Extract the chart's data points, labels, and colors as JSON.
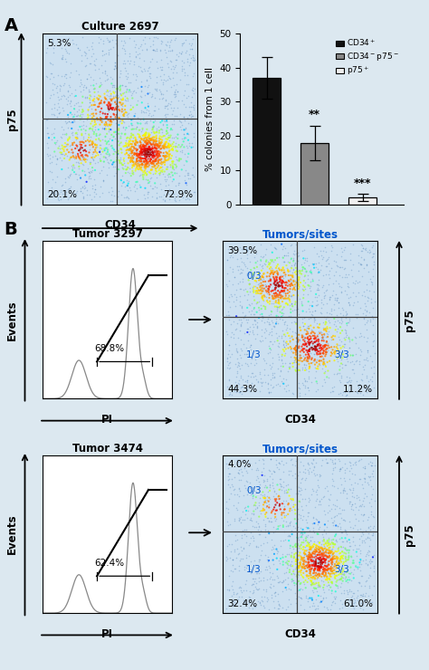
{
  "panel_A_label": "A",
  "panel_B_label": "B",
  "flow_title_A": "Culture 2697",
  "flow_xlabel_A": "CD34",
  "flow_ylabel_A": "p75",
  "quad_A": {
    "UL": "5.3%",
    "LL": "20.1%",
    "LR": "72.9%"
  },
  "bar_ylabel": "% colonies from 1 cell",
  "bar_ylim": [
    0,
    50
  ],
  "bar_yticks": [
    0,
    10,
    20,
    30,
    40,
    50
  ],
  "bar_values": [
    37,
    18,
    2
  ],
  "bar_errors": [
    6,
    5,
    1
  ],
  "bar_colors": [
    "#111111",
    "#888888",
    "#f0f0f0"
  ],
  "bar_sig": [
    "",
    "**",
    "***"
  ],
  "tumor1_title": "Tumor 3297",
  "tumor1_pi_pct": "68.8%",
  "tumor1_scatter_title": "Tumors/sites",
  "tumor1_UL": "39.5%",
  "tumor1_LL": "44.3%",
  "tumor1_LR": "11.2%",
  "tumor1_quad_UL_txt": "0/3",
  "tumor1_quad_LL_txt": "1/3",
  "tumor1_quad_LR_txt": "3/3",
  "tumor2_title": "Tumor 3474",
  "tumor2_pi_pct": "62.4%",
  "tumor2_scatter_title": "Tumors/sites",
  "tumor2_UL": "4.0%",
  "tumor2_LL": "32.4%",
  "tumor2_LR": "61.0%",
  "tumor2_quad_UL_txt": "0/3",
  "tumor2_quad_LL_txt": "1/3",
  "tumor2_quad_LR_txt": "3/3",
  "fig_bg": "#dce8f0",
  "plot_bg": "#ffffff",
  "scatter_bg": "#cce0f0"
}
